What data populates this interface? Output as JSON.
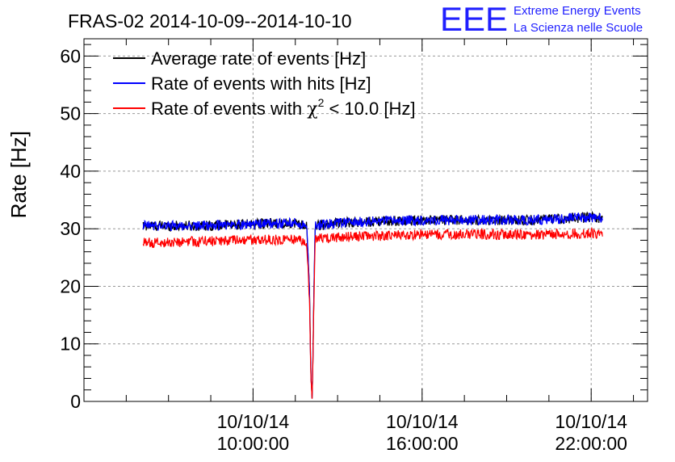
{
  "chart_data": {
    "type": "line",
    "title": "FRAS-02 2014-10-09--2014-10-10",
    "ylabel": "Rate [Hz]",
    "xlabel": "",
    "ylim": [
      0,
      63
    ],
    "y_ticks": [
      0,
      10,
      20,
      30,
      40,
      50,
      60
    ],
    "x_range_hours": [
      4.0,
      24.0
    ],
    "x_ticks": [
      {
        "hour": 10,
        "date": "10/10/14",
        "time": "10:00:00"
      },
      {
        "hour": 16,
        "date": "10/10/14",
        "time": "16:00:00"
      },
      {
        "hour": 22,
        "date": "10/10/14",
        "time": "22:00:00"
      }
    ],
    "grid": true,
    "legend_position": "top-left",
    "legend": {
      "average": "Average rate of events [Hz]",
      "hits": "Rate of events with hits [Hz]",
      "chi2_prefix": "Rate of events with ",
      "chi2_symbol": "χ",
      "chi2_sup": "2",
      "chi2_suffix": " < 10.0 [Hz]"
    },
    "series": [
      {
        "name": "Average rate of events [Hz]",
        "color": "#000000",
        "x_hours": [
          6.1,
          8.0,
          10.0,
          11.5,
          11.9,
          12.0,
          12.05,
          12.1,
          12.2,
          13.0,
          14.0,
          16.0,
          18.0,
          20.0,
          22.0,
          22.4
        ],
        "values": [
          30.5,
          30.5,
          30.8,
          31.0,
          30.5,
          20.0,
          5.0,
          0.0,
          30.5,
          31.0,
          31.2,
          31.5,
          31.5,
          31.5,
          32.0,
          31.8
        ]
      },
      {
        "name": "Rate of events with hits [Hz]",
        "color": "#0000ff",
        "x_hours": [
          6.1,
          8.0,
          10.0,
          11.5,
          11.9,
          12.0,
          12.05,
          12.1,
          12.2,
          13.0,
          14.0,
          16.0,
          18.0,
          20.0,
          22.0,
          22.4
        ],
        "values": [
          30.5,
          30.5,
          30.8,
          31.0,
          30.5,
          20.0,
          5.0,
          0.0,
          30.5,
          31.0,
          31.2,
          31.5,
          31.5,
          31.5,
          32.0,
          31.8
        ]
      },
      {
        "name": "Rate of events with chi2 < 10.0 [Hz]",
        "color": "#ff0000",
        "x_hours": [
          6.1,
          8.0,
          10.0,
          11.5,
          11.9,
          12.0,
          12.05,
          12.1,
          12.2,
          13.0,
          14.0,
          16.0,
          18.0,
          20.0,
          22.0,
          22.4
        ],
        "values": [
          27.5,
          27.8,
          28.0,
          28.2,
          27.5,
          18.0,
          4.5,
          0.0,
          28.2,
          28.5,
          28.7,
          29.0,
          29.0,
          29.0,
          29.2,
          29.0
        ]
      }
    ],
    "noise_amplitude": 0.9
  },
  "logo": {
    "mark": "EEE",
    "line1": "Extreme Energy Events",
    "line2": "La Scienza nelle Scuole",
    "color": "#1f1fff"
  }
}
